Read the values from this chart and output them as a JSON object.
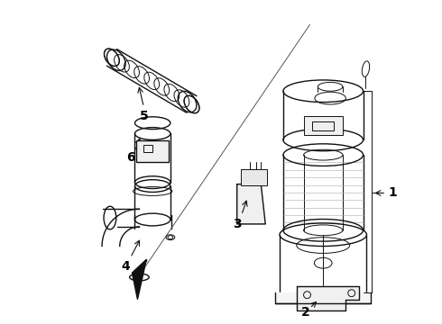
{
  "background_color": "#ffffff",
  "line_color": "#111111",
  "label_color": "#000000",
  "fig_width": 4.9,
  "fig_height": 3.6,
  "dpi": 100
}
